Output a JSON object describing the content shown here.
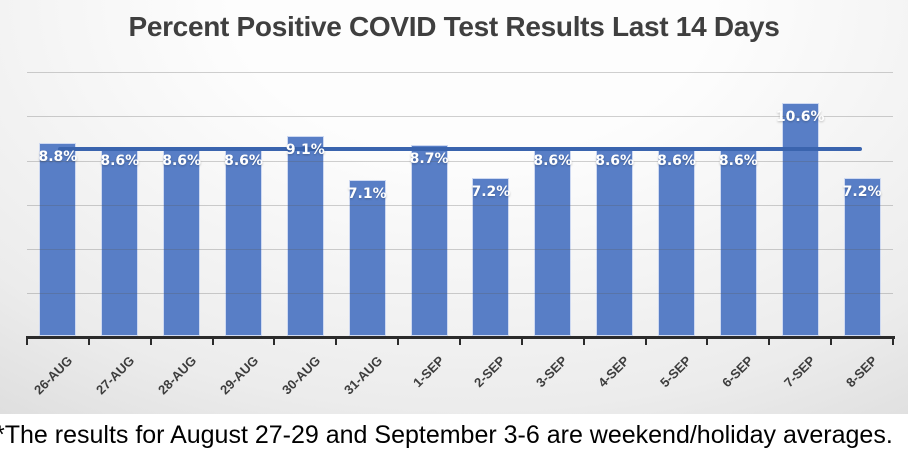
{
  "title": "Percent Positive COVID Test Results Last 14 Days",
  "footnote": "*The results for August 27-29 and September 3-6 are weekend/holiday averages.",
  "chart_data": {
    "type": "bar",
    "title": "Percent Positive COVID Test Results Last 14 Days",
    "categories": [
      "26-AUG",
      "27-AUG",
      "28-AUG",
      "29-AUG",
      "30-AUG",
      "31-AUG",
      "1-SEP",
      "2-SEP",
      "3-SEP",
      "4-SEP",
      "5-SEP",
      "6-SEP",
      "7-SEP",
      "8-SEP"
    ],
    "series": [
      {
        "name": "percent-positive-bars",
        "type": "bar",
        "values": [
          8.8,
          8.6,
          8.6,
          8.6,
          9.1,
          7.1,
          8.7,
          7.2,
          8.6,
          8.6,
          8.6,
          8.6,
          10.6,
          7.2
        ],
        "labels": [
          "8.8%",
          "8.6%",
          "8.6%",
          "8.6%",
          "9.1%",
          "7.1%",
          "8.7%",
          "7.2%",
          "8.6%",
          "8.6%",
          "8.6%",
          "8.6%",
          "10.6%",
          "7.2%"
        ]
      },
      {
        "name": "average-trend-line",
        "type": "line",
        "value": 8.5
      }
    ],
    "xlabel": "",
    "ylabel": "",
    "ylim": [
      0,
      12
    ],
    "gridline_step": 2,
    "grid": true,
    "legend_position": "none",
    "y_tick_labels_visible": false,
    "colors": {
      "bar": "#587EC6",
      "trend_line": "#3A64AE",
      "axis": "#2B2B2B",
      "bar_label_text": "#FFFFFF",
      "x_label_text": "#3D3D3D",
      "title_text": "#3F3F3F",
      "footnote_text": "#000000",
      "footnote_bg": "#FFFFFF"
    }
  }
}
